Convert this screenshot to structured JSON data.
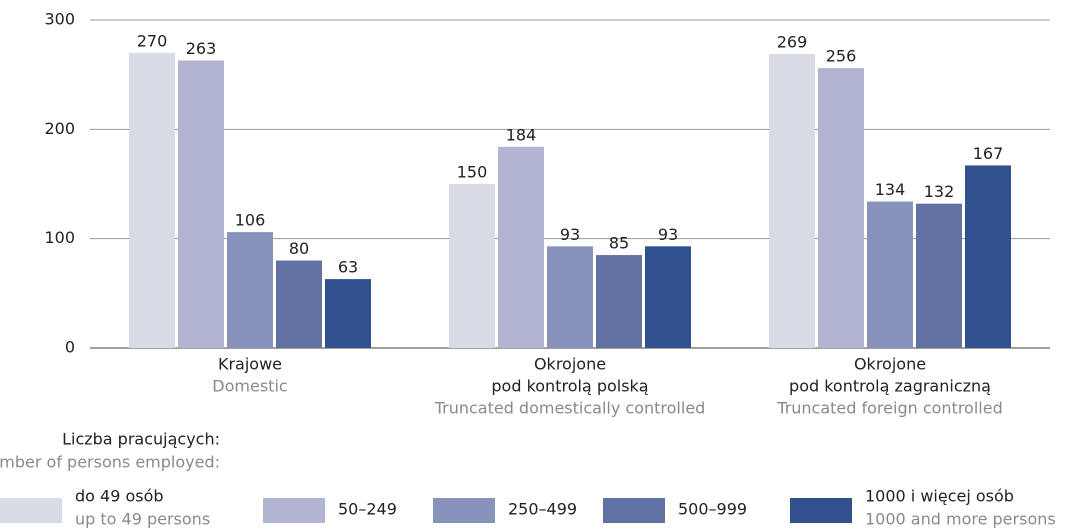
{
  "chart_data": {
    "type": "bar",
    "categories": [
      [
        "Krajowe"
      ],
      [
        "Okrojone",
        "pod kontrolą polską"
      ],
      [
        "Okrojone",
        "pod kontrolą zagraniczną"
      ]
    ],
    "categories_en": [
      "Domestic",
      "Truncated domestically controlled",
      "Truncated foreign controlled"
    ],
    "legend_title": "Liczba pracujących:",
    "legend_title_en": "Number of persons employed:",
    "series": [
      {
        "name": "do 49 osób",
        "name_en": "up to 49 persons",
        "color": "#d9dbe6",
        "values": [
          270,
          150,
          269
        ]
      },
      {
        "name": "50–249",
        "color": "#b1b5d1",
        "values": [
          263,
          184,
          256
        ]
      },
      {
        "name": "250–499",
        "color": "#8893bd",
        "values": [
          106,
          93,
          134
        ]
      },
      {
        "name": "500–999",
        "color": "#6271a3",
        "values": [
          80,
          85,
          132
        ]
      },
      {
        "name": "1000 i więcej osób",
        "name_en": "1000 and more persons",
        "color": "#31508e",
        "values": [
          63,
          93,
          167
        ]
      }
    ],
    "ylim": [
      0,
      300
    ],
    "yticks": [
      0,
      100,
      200,
      300
    ],
    "grid": true
  }
}
